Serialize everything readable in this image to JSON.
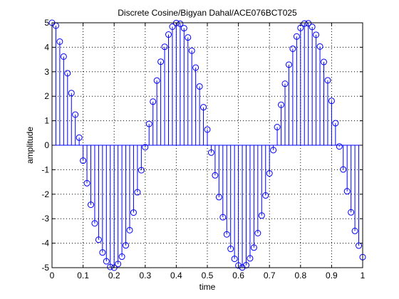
{
  "chart_data": {
    "type": "stem",
    "title": "Discrete Cosine/Bigyan Dahal/ACE076BCT025",
    "xlabel": "time",
    "ylabel": "amplitude",
    "xlim": [
      0,
      1
    ],
    "ylim": [
      -5,
      5
    ],
    "xticks": [
      0,
      0.1,
      0.2,
      0.3,
      0.4,
      0.5,
      0.6,
      0.7,
      0.8,
      0.9,
      1
    ],
    "xtick_labels": [
      "0",
      "0.1",
      "0.2",
      "0.3",
      "0.4",
      "0.5",
      "0.6",
      "0.7",
      "0.8",
      "0.9",
      "1"
    ],
    "yticks": [
      -5,
      -4,
      -3,
      -2,
      -1,
      0,
      1,
      2,
      3,
      4,
      5
    ],
    "ytick_labels": [
      "-5",
      "-4",
      "-3",
      "-2",
      "-1",
      "0",
      "1",
      "2",
      "3",
      "4",
      "5"
    ],
    "grid": true,
    "marker": "circle",
    "series_color": "#0000ff",
    "x": [
      0,
      0.0125,
      0.025,
      0.0375,
      0.05,
      0.0625,
      0.075,
      0.0875,
      0.1,
      0.1125,
      0.125,
      0.1375,
      0.15,
      0.1625,
      0.175,
      0.1875,
      0.2,
      0.2125,
      0.225,
      0.2375,
      0.25,
      0.2625,
      0.275,
      0.2875,
      0.3,
      0.3125,
      0.325,
      0.3375,
      0.35,
      0.3625,
      0.375,
      0.3875,
      0.4,
      0.4125,
      0.425,
      0.4375,
      0.45,
      0.4625,
      0.475,
      0.4875,
      0.5,
      0.5125,
      0.525,
      0.5375,
      0.55,
      0.5625,
      0.575,
      0.5875,
      0.6,
      0.6125,
      0.625,
      0.6375,
      0.65,
      0.6625,
      0.675,
      0.6875,
      0.7,
      0.7125,
      0.725,
      0.7375,
      0.75,
      0.7625,
      0.775,
      0.7875,
      0.8,
      0.8125,
      0.825,
      0.8375,
      0.85,
      0.8625,
      0.875,
      0.8875,
      0.9,
      0.9125,
      0.925,
      0.9375,
      0.95,
      0.9625,
      0.975,
      0.9875,
      1
    ],
    "y": [
      5,
      4.88,
      4.23,
      3.62,
      2.94,
      2.13,
      1.25,
      0.31,
      -0.63,
      -1.55,
      -2.43,
      -3.19,
      -3.86,
      -4.38,
      -4.74,
      -4.97,
      -5,
      -4.85,
      -4.55,
      -4.09,
      -3.47,
      -2.75,
      -1.92,
      -1.02,
      -0.08,
      0.87,
      1.78,
      2.64,
      3.41,
      4.02,
      4.52,
      4.84,
      4.99,
      4.96,
      4.78,
      4.4,
      3.86,
      3.17,
      2.4,
      1.55,
      0.64,
      -0.3,
      -1.23,
      -2.12,
      -2.94,
      -3.64,
      -4.23,
      -4.64,
      -4.91,
      -4.99,
      -4.9,
      -4.62,
      -4.18,
      -3.59,
      -2.87,
      -2.05,
      -1.15,
      -0.2,
      0.74,
      1.65,
      2.51,
      3.29,
      3.94,
      4.44,
      4.79,
      4.97,
      4.98,
      4.83,
      4.51,
      4.03,
      3.4,
      2.65,
      1.81,
      0.9,
      -0.05,
      -0.99,
      -1.88,
      -2.74,
      -3.5,
      -4.1,
      -4.57
    ]
  }
}
